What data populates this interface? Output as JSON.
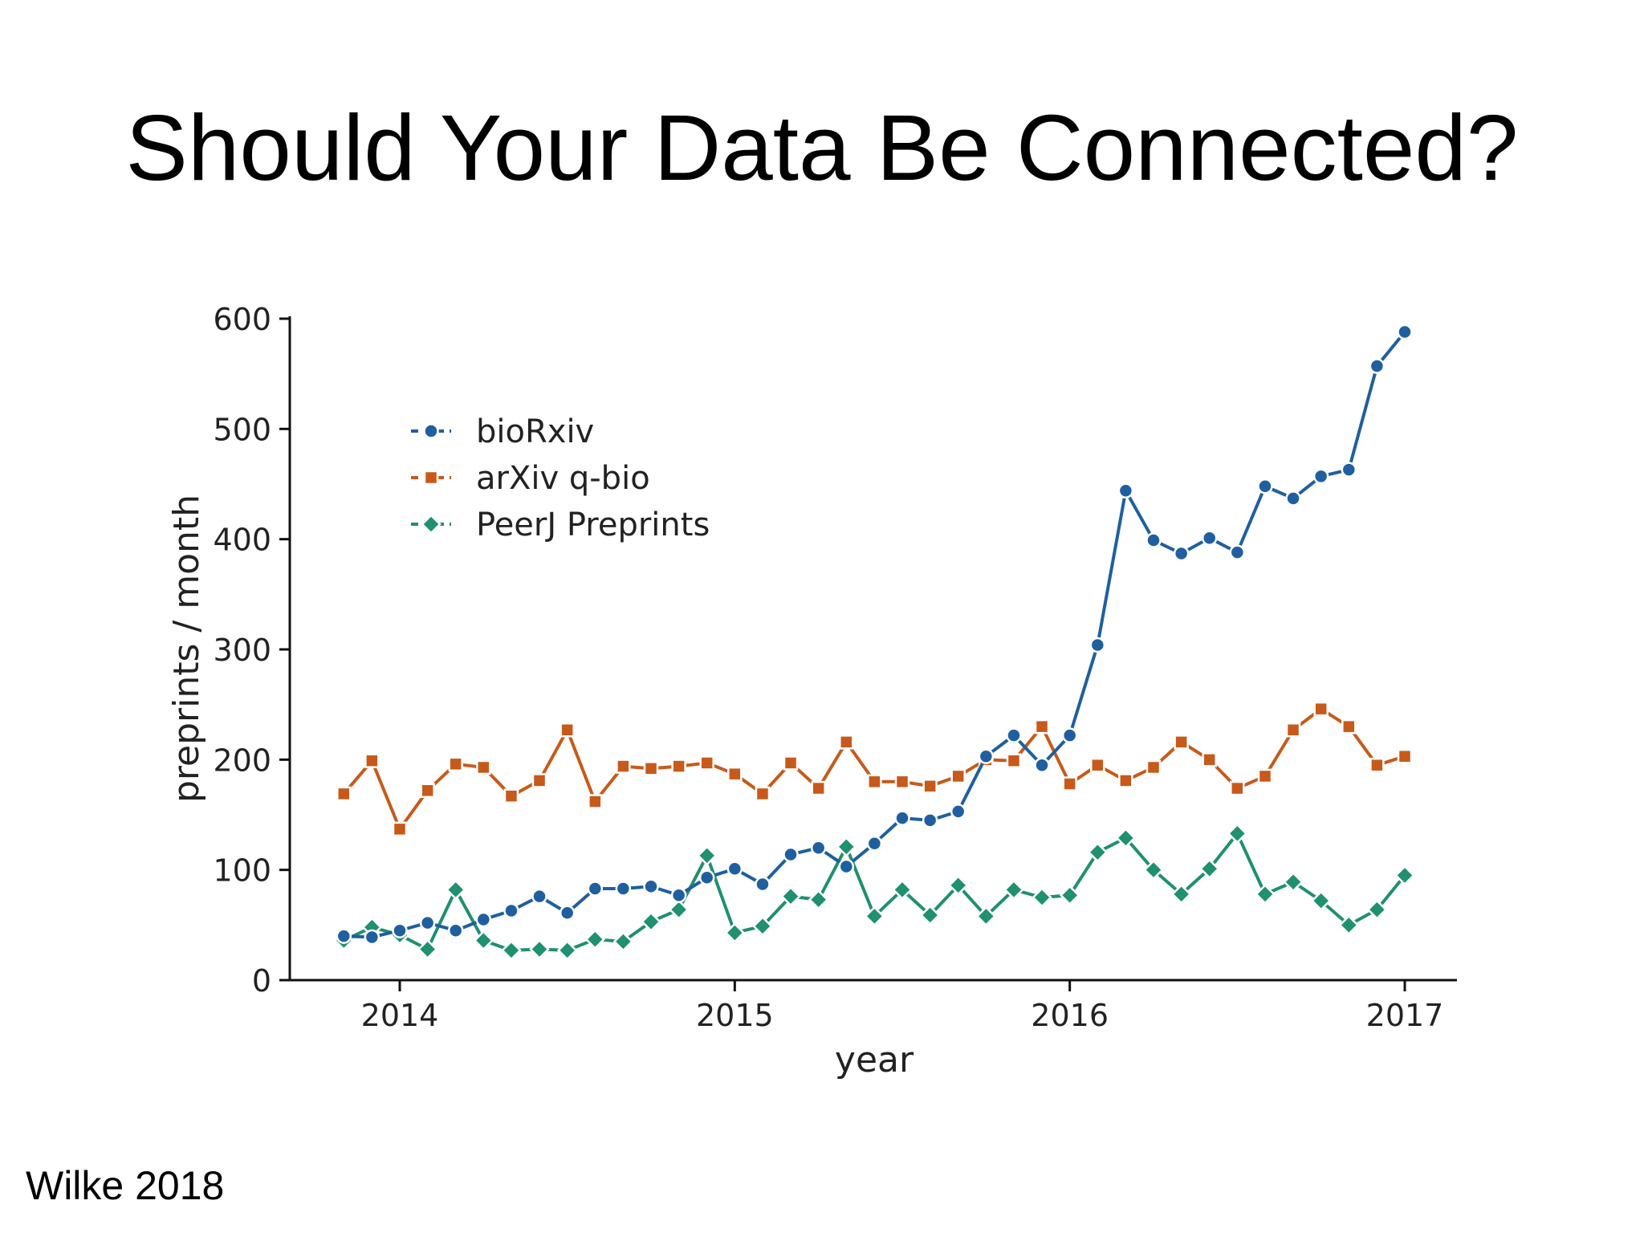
{
  "slide": {
    "title": "Should Your Data Be Connected?",
    "credit": "Wilke 2018"
  },
  "chart_data": {
    "type": "line",
    "xlabel": "year",
    "ylabel": "preprints / month",
    "xlim": [
      2013.83,
      2017.0
    ],
    "ylim": [
      0,
      600
    ],
    "x_ticks": [
      2014,
      2015,
      2016,
      2017
    ],
    "y_ticks": [
      0,
      100,
      200,
      300,
      400,
      500,
      600
    ],
    "grid": false,
    "legend": "top-left",
    "x": [
      2013.833,
      2013.917,
      2014.0,
      2014.083,
      2014.167,
      2014.25,
      2014.333,
      2014.417,
      2014.5,
      2014.583,
      2014.667,
      2014.75,
      2014.833,
      2014.917,
      2015.0,
      2015.083,
      2015.167,
      2015.25,
      2015.333,
      2015.417,
      2015.5,
      2015.583,
      2015.667,
      2015.75,
      2015.833,
      2015.917,
      2016.0,
      2016.083,
      2016.167,
      2016.25,
      2016.333,
      2016.417,
      2016.5,
      2016.583,
      2016.667,
      2016.75,
      2016.833,
      2016.917,
      2017.0
    ],
    "series": [
      {
        "name": "bioRxiv",
        "color": "#1f5fa0",
        "marker": "circle",
        "values": [
          40,
          39,
          45,
          52,
          45,
          55,
          63,
          76,
          61,
          83,
          83,
          85,
          77,
          93,
          101,
          87,
          114,
          120,
          103,
          124,
          147,
          145,
          153,
          203,
          222,
          195,
          222,
          304,
          444,
          399,
          387,
          401,
          388,
          448,
          437,
          457,
          463,
          557,
          588
        ]
      },
      {
        "name": "arXiv q-bio",
        "color": "#c75a1a",
        "marker": "square",
        "values": [
          169,
          199,
          137,
          172,
          196,
          193,
          167,
          181,
          227,
          162,
          194,
          192,
          194,
          197,
          187,
          169,
          197,
          174,
          216,
          180,
          180,
          176,
          185,
          200,
          199,
          230,
          178,
          195,
          181,
          193,
          216,
          200,
          174,
          185,
          227,
          246,
          230,
          195,
          203
        ]
      },
      {
        "name": "PeerJ Preprints",
        "color": "#1f9070",
        "marker": "diamond",
        "values": [
          36,
          48,
          41,
          28,
          82,
          36,
          27,
          28,
          27,
          37,
          35,
          53,
          64,
          113,
          43,
          49,
          76,
          73,
          121,
          58,
          82,
          59,
          86,
          58,
          82,
          75,
          77,
          116,
          129,
          100,
          78,
          101,
          133,
          78,
          89,
          72,
          50,
          64,
          95
        ]
      }
    ]
  }
}
